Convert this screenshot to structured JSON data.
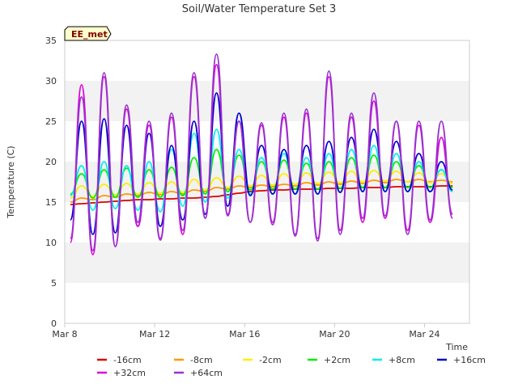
{
  "chart_data": {
    "type": "line",
    "title": "Soil/Water Temperature Set 3",
    "xlabel": "Time",
    "ylabel": "Temperature (C)",
    "ylim": [
      0,
      35
    ],
    "yticks": [
      0,
      5,
      10,
      15,
      20,
      25,
      30,
      35
    ],
    "xlim": [
      "Mar 8",
      "Mar 26"
    ],
    "xticks": [
      "Mar 8",
      "Mar 12",
      "Mar 16",
      "Mar 20",
      "Mar 24"
    ],
    "grid": "horizontal bands",
    "legend_position": "bottom",
    "site_badge": "EE_met",
    "x_days": [
      8.25,
      8.75,
      9.25,
      9.75,
      10.25,
      10.75,
      11.25,
      11.75,
      12.25,
      12.75,
      13.25,
      13.75,
      14.25,
      14.75,
      15.25,
      15.75,
      16.25,
      16.75,
      17.25,
      17.75,
      18.25,
      18.75,
      19.25,
      19.75,
      20.25,
      20.75,
      21.25,
      21.75,
      22.25,
      22.75,
      23.25,
      23.75,
      24.25,
      24.75,
      25.25
    ],
    "series": [
      {
        "name": "-16cm",
        "color": "#dd0000",
        "values": [
          14.7,
          14.8,
          14.9,
          15.0,
          15.1,
          15.2,
          15.3,
          15.3,
          15.4,
          15.4,
          15.5,
          15.5,
          15.6,
          15.7,
          15.9,
          16.1,
          16.3,
          16.4,
          16.5,
          16.5,
          16.6,
          16.6,
          16.6,
          16.7,
          16.7,
          16.7,
          16.8,
          16.8,
          16.8,
          16.9,
          16.9,
          16.9,
          16.9,
          17.0,
          17.0
        ]
      },
      {
        "name": "-8cm",
        "color": "#ff9900",
        "values": [
          15.0,
          15.5,
          15.3,
          15.8,
          15.6,
          16.0,
          15.8,
          16.2,
          15.9,
          16.3,
          16.0,
          16.5,
          16.3,
          16.8,
          16.6,
          17.0,
          16.8,
          17.1,
          16.9,
          17.2,
          17.0,
          17.4,
          17.1,
          17.5,
          17.2,
          17.6,
          17.3,
          17.7,
          17.4,
          17.8,
          17.5,
          17.8,
          17.5,
          17.7,
          17.5
        ]
      },
      {
        "name": "-2cm",
        "color": "#ffee00",
        "values": [
          15.5,
          17.0,
          15.7,
          17.2,
          15.9,
          17.3,
          16.0,
          17.4,
          16.1,
          17.5,
          16.2,
          17.8,
          16.5,
          18.0,
          16.8,
          18.2,
          17.0,
          18.3,
          17.1,
          18.5,
          17.2,
          18.6,
          17.3,
          18.7,
          17.4,
          18.8,
          17.5,
          18.9,
          17.6,
          18.8,
          17.5,
          18.6,
          17.4,
          18.5,
          17.3
        ]
      },
      {
        "name": "+2cm",
        "color": "#00ee00",
        "values": [
          16.0,
          18.5,
          15.5,
          19.0,
          15.6,
          19.2,
          15.6,
          19.0,
          15.6,
          19.3,
          15.8,
          20.5,
          16.0,
          21.5,
          16.3,
          20.8,
          16.5,
          20.0,
          16.6,
          20.2,
          16.6,
          19.8,
          16.6,
          20.0,
          16.7,
          20.5,
          16.8,
          20.8,
          16.8,
          20.0,
          16.8,
          19.5,
          16.8,
          19.0,
          16.8
        ]
      },
      {
        "name": "+8cm",
        "color": "#00eeee",
        "values": [
          15.8,
          19.5,
          14.0,
          20.0,
          14.2,
          19.5,
          14.0,
          20.0,
          13.8,
          21.5,
          14.5,
          23.5,
          15.0,
          24.0,
          15.5,
          21.5,
          16.0,
          20.5,
          16.0,
          21.0,
          16.0,
          20.5,
          16.0,
          21.0,
          16.2,
          21.5,
          16.3,
          22.0,
          16.3,
          21.0,
          16.3,
          20.0,
          16.3,
          19.0,
          16.3
        ]
      },
      {
        "name": "+16cm",
        "color": "#0000cc",
        "values": [
          12.8,
          25.0,
          11.0,
          25.3,
          11.2,
          24.5,
          12.0,
          23.5,
          12.0,
          22.0,
          12.8,
          25.0,
          13.5,
          28.5,
          14.5,
          26.0,
          15.8,
          22.0,
          16.0,
          21.5,
          16.0,
          22.0,
          16.0,
          22.5,
          16.2,
          23.0,
          16.3,
          24.0,
          16.3,
          22.5,
          16.3,
          21.0,
          16.3,
          20.0,
          16.5
        ]
      },
      {
        "name": "+32cm",
        "color": "#dd00dd",
        "values": [
          10.0,
          29.5,
          8.5,
          30.5,
          9.5,
          26.5,
          12.0,
          24.5,
          10.5,
          25.5,
          11.0,
          30.5,
          13.0,
          32.0,
          13.5,
          25.0,
          12.5,
          24.5,
          12.5,
          25.5,
          11.0,
          26.0,
          10.5,
          30.5,
          11.5,
          25.5,
          12.5,
          27.5,
          13.0,
          25.0,
          11.5,
          24.5,
          12.5,
          23.0,
          13.5
        ]
      },
      {
        "name": "+64cm",
        "color": "#9933cc",
        "values": [
          10.5,
          28.0,
          9.0,
          31.0,
          9.5,
          27.0,
          12.5,
          25.0,
          10.3,
          26.0,
          11.5,
          31.0,
          13.0,
          33.3,
          13.3,
          25.0,
          12.5,
          24.8,
          12.2,
          26.0,
          10.8,
          26.5,
          10.2,
          31.2,
          11.0,
          26.0,
          13.0,
          28.5,
          13.3,
          25.0,
          11.0,
          25.0,
          12.8,
          25.0,
          13.0
        ]
      }
    ]
  }
}
